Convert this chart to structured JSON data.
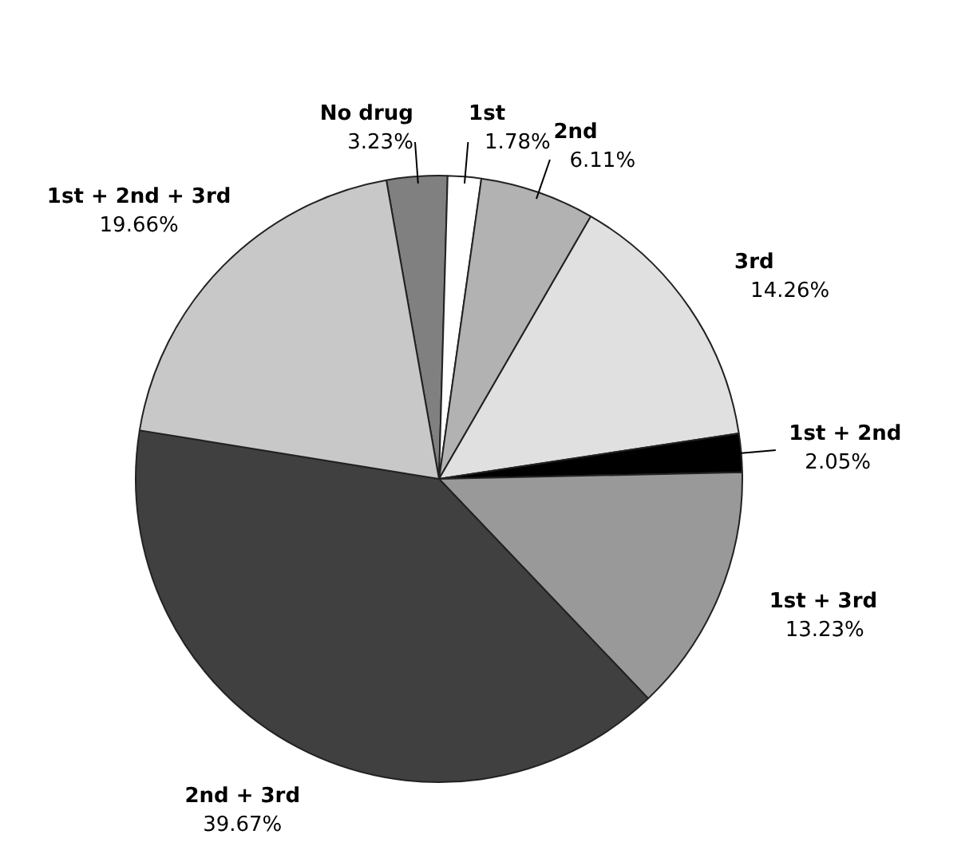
{
  "chart_data": {
    "type": "pie",
    "categories": [
      "No drug",
      "1st",
      "2nd",
      "3rd",
      "1st + 2nd",
      "1st + 3rd",
      "2nd + 3rd",
      "1st + 2nd + 3rd"
    ],
    "values": [
      3.23,
      1.78,
      6.11,
      14.26,
      2.05,
      13.23,
      39.67,
      19.66
    ],
    "value_labels": [
      "3.23%",
      "1.78%",
      "6.11%",
      "14.26%",
      "2.05%",
      "13.23%",
      "39.67%",
      "19.66%"
    ],
    "colors": [
      "#808080",
      "#ffffff",
      "#b2b2b2",
      "#e0e0e0",
      "#000000",
      "#999999",
      "#404040",
      "#c8c8c8"
    ],
    "legend": false
  }
}
